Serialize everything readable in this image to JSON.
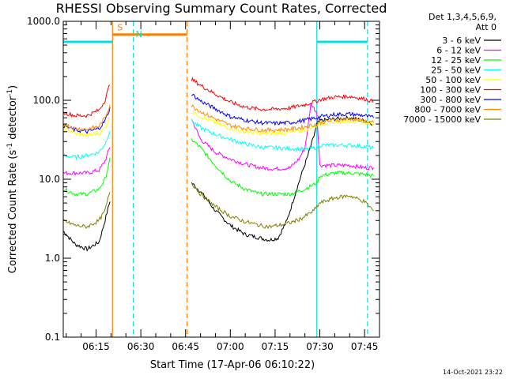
{
  "chart_data": {
    "type": "line",
    "title": "RHESSI Observing Summary Count Rates, Corrected",
    "xlabel": "Start Time (17-Apr-06 06:10:22)",
    "ylabel_main": "Corrected Count Rate (s",
    "ylabel_sup1": "-1",
    "ylabel_mid": " detector",
    "ylabel_sup2": "-1",
    "ylabel_end": ")",
    "ylabel": "Corrected Count Rate (s-1 detector-1)",
    "y_scale": "log",
    "ylim": [
      0.1,
      1000
    ],
    "xlim_min": [
      4,
      50
    ],
    "x_ticks": [
      "06:15",
      "06:30",
      "06:45",
      "07:00",
      "07:15",
      "07:30",
      "07:45"
    ],
    "x_tick_values": [
      15,
      30,
      45,
      60,
      75,
      90,
      105
    ],
    "y_ticks": [
      "0.1",
      "1.0",
      "10.0",
      "100.0",
      "1000.0"
    ],
    "y_tick_values": [
      0.1,
      1,
      10,
      100,
      1000
    ],
    "legend_title_1": "Det 1,3,4,5,6,9,",
    "legend_title_2": "Att 0",
    "legend_placement": "right",
    "timestamp": "14-Oct-2021 23:22",
    "gaps": [
      [
        20.5,
        46.5
      ]
    ],
    "markers": [
      {
        "x": 20.5,
        "color": "#ff8000",
        "style": "solid"
      },
      {
        "x": 27.5,
        "color": "#00e0e0",
        "style": "dashed"
      },
      {
        "x": 45.5,
        "color": "#ff8000",
        "style": "dashed"
      },
      {
        "x": 89,
        "color": "#00e0e0",
        "style": "solid"
      },
      {
        "x": 106,
        "color": "#00e0e0",
        "style": "dashed"
      }
    ],
    "bars": [
      {
        "label": "",
        "from": 4,
        "to": 20.5,
        "y": 550,
        "color": "#00e0e0"
      },
      {
        "label": "S",
        "from": 20.5,
        "to": 45.5,
        "y": 680,
        "color": "#ff8000"
      },
      {
        "label": "N",
        "from": 27.5,
        "to": 27.5,
        "y": 560,
        "color": "#00e0e0"
      },
      {
        "label": "",
        "from": 89,
        "to": 106,
        "y": 550,
        "color": "#00e0e0"
      }
    ],
    "series": [
      {
        "name": "3 - 6 keV",
        "color": "#000000",
        "x": [
          4,
          8,
          12,
          16,
          18,
          20,
          47,
          50,
          55,
          60,
          65,
          70,
          73,
          76,
          79,
          82,
          84,
          86,
          88,
          89,
          90,
          95,
          100,
          105,
          108
        ],
        "y": [
          2.2,
          1.5,
          1.3,
          1.6,
          3,
          6,
          9,
          7,
          4,
          2.6,
          2,
          1.8,
          1.7,
          1.8,
          3,
          7,
          12,
          20,
          35,
          50,
          55,
          58,
          60,
          55,
          50
        ]
      },
      {
        "name": "6 - 12 keV",
        "color": "#ff00ff",
        "x": [
          4,
          8,
          12,
          16,
          18,
          20,
          47,
          50,
          55,
          60,
          65,
          70,
          75,
          80,
          83,
          85,
          86,
          87,
          88,
          89,
          90,
          95,
          100,
          105,
          108
        ],
        "y": [
          12,
          12,
          12,
          13,
          17,
          28,
          58,
          32,
          22,
          18,
          15.5,
          14,
          13.5,
          14,
          18,
          25,
          45,
          90,
          80,
          70,
          15,
          15,
          15,
          14,
          14
        ]
      },
      {
        "name": "12 - 25 keV",
        "color": "#00ff00",
        "x": [
          4,
          8,
          12,
          16,
          18,
          20,
          47,
          50,
          55,
          60,
          65,
          70,
          75,
          80,
          85,
          89,
          90,
          95,
          100,
          105,
          108
        ],
        "y": [
          7.5,
          6.5,
          6.5,
          7.5,
          10,
          20,
          32,
          25,
          15,
          9.5,
          7.5,
          6.5,
          6.5,
          6.5,
          7.5,
          9,
          11,
          12,
          12,
          11.5,
          11
        ]
      },
      {
        "name": "25 - 50 keV",
        "color": "#00ffff",
        "x": [
          4,
          8,
          12,
          16,
          18,
          20,
          47,
          50,
          55,
          60,
          65,
          70,
          75,
          80,
          85,
          89,
          90,
          95,
          100,
          105,
          108
        ],
        "y": [
          20,
          19,
          20,
          22,
          28,
          45,
          55,
          45,
          37,
          32,
          28,
          25.5,
          25,
          24.5,
          24,
          25,
          27,
          27,
          27,
          26,
          25
        ]
      },
      {
        "name": "50 - 100 keV",
        "color": "#ffff00",
        "x": [
          4,
          8,
          12,
          16,
          18,
          20,
          47,
          50,
          55,
          60,
          65,
          70,
          75,
          80,
          85,
          89,
          90,
          95,
          100,
          105,
          108
        ],
        "y": [
          45,
          38,
          36,
          38,
          45,
          65,
          72,
          62,
          52,
          44,
          40,
          38,
          38,
          39,
          42,
          48,
          50,
          53,
          55,
          53,
          50
        ]
      },
      {
        "name": "100 - 300 keV",
        "color": "#ff0000",
        "x": [
          4,
          8,
          12,
          16,
          18,
          20,
          47,
          50,
          55,
          60,
          65,
          70,
          75,
          80,
          85,
          89,
          90,
          95,
          100,
          105,
          108
        ],
        "y": [
          70,
          64,
          64,
          75,
          100,
          180,
          185,
          155,
          120,
          95,
          82,
          77,
          77,
          80,
          88,
          98,
          102,
          110,
          112,
          104,
          96
        ]
      },
      {
        "name": "300 - 800 keV",
        "color": "#0000ff",
        "x": [
          4,
          8,
          12,
          16,
          18,
          20,
          47,
          50,
          55,
          60,
          65,
          70,
          75,
          80,
          85,
          89,
          90,
          95,
          100,
          105,
          108
        ],
        "y": [
          48,
          42,
          40,
          44,
          55,
          85,
          120,
          98,
          78,
          62,
          56,
          52,
          51,
          52,
          56,
          60,
          62,
          66,
          67,
          64,
          60
        ]
      },
      {
        "name": "800 - 7000 keV",
        "color": "#ff8800",
        "x": [
          4,
          8,
          12,
          16,
          18,
          20,
          47,
          50,
          55,
          60,
          65,
          70,
          75,
          80,
          85,
          89,
          90,
          95,
          100,
          105,
          108
        ],
        "y": [
          50,
          44,
          43,
          47,
          60,
          95,
          85,
          72,
          58,
          48,
          44,
          42,
          42,
          43,
          46,
          50,
          52,
          56,
          58,
          55,
          52
        ]
      },
      {
        "name": "7000 - 15000 keV",
        "color": "#808000",
        "x": [
          4,
          8,
          12,
          16,
          18,
          20,
          47,
          50,
          55,
          60,
          65,
          70,
          73,
          76,
          80,
          84,
          88,
          89,
          90,
          95,
          100,
          105,
          108
        ],
        "y": [
          3,
          2.6,
          2.5,
          3,
          4,
          8,
          9,
          6.5,
          4.5,
          3.4,
          2.9,
          2.6,
          2.5,
          2.6,
          2.8,
          3.2,
          4,
          4.5,
          5,
          5.8,
          6.2,
          5.2,
          4
        ]
      }
    ]
  }
}
